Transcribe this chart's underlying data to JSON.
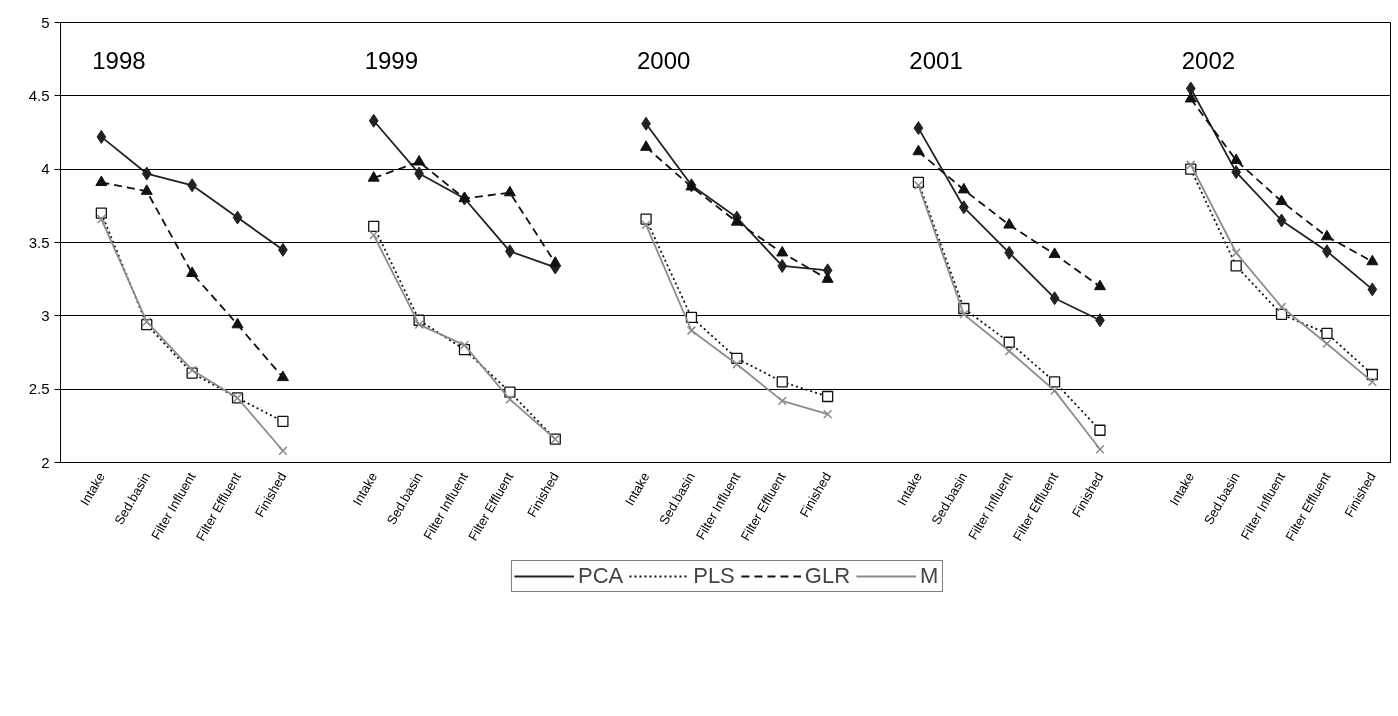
{
  "chart_data": {
    "type": "line",
    "categories": [
      "Intake",
      "Sed.basin",
      "Filter Influent",
      "Filter Effluent",
      "Finished",
      null,
      "Intake",
      "Sed.basin",
      "Filter Influent",
      "Filter Effluent",
      "Finished",
      null,
      "Intake",
      "Sed.basin",
      "Filter Influent",
      "Filter Effluent",
      "Finished",
      null,
      "Intake",
      "Sed.basin",
      "Filter Influent",
      "Filter Effluent",
      "Finished",
      null,
      "Intake",
      "Sed.basin",
      "Filter Influent",
      "Filter Effluent",
      "Finished"
    ],
    "series": [
      {
        "name": "PCA",
        "color": "#222222",
        "marker": "diamond",
        "line_style": "solid",
        "values": [
          4.22,
          3.97,
          3.89,
          3.67,
          3.45,
          null,
          4.33,
          3.97,
          3.8,
          3.44,
          3.33,
          null,
          4.31,
          3.89,
          3.67,
          3.34,
          3.31,
          null,
          4.28,
          3.74,
          3.43,
          3.12,
          2.97,
          null,
          4.55,
          3.98,
          3.65,
          3.44,
          3.18
        ]
      },
      {
        "name": "PLS",
        "color": "#111111",
        "marker": "square",
        "line_style": "dotted",
        "values": [
          3.7,
          2.94,
          2.61,
          2.44,
          2.28,
          null,
          3.61,
          2.97,
          2.77,
          2.48,
          2.16,
          null,
          3.66,
          2.99,
          2.71,
          2.55,
          2.45,
          null,
          3.91,
          3.05,
          2.82,
          2.55,
          2.22,
          null,
          4.0,
          3.34,
          3.01,
          2.88,
          2.6
        ]
      },
      {
        "name": "GLR",
        "color": "#111111",
        "marker": "triangle",
        "line_style": "dashed",
        "values": [
          3.91,
          3.85,
          3.29,
          2.94,
          2.58,
          null,
          3.94,
          4.05,
          3.8,
          3.84,
          3.36,
          null,
          4.15,
          3.88,
          3.64,
          3.43,
          3.25,
          null,
          4.12,
          3.86,
          3.62,
          3.42,
          3.2,
          null,
          4.48,
          4.06,
          3.78,
          3.54,
          3.37
        ]
      },
      {
        "name": "M",
        "color": "#8c8c8c",
        "marker": "cross",
        "line_style": "solid",
        "values": [
          3.66,
          2.96,
          2.63,
          2.44,
          2.08,
          null,
          3.55,
          2.94,
          2.8,
          2.43,
          2.16,
          null,
          3.62,
          2.9,
          2.67,
          2.42,
          2.33,
          null,
          3.89,
          3.01,
          2.76,
          2.49,
          2.09,
          null,
          4.03,
          3.43,
          3.06,
          2.81,
          2.55
        ]
      }
    ],
    "annotations": [
      "1998",
      "1999",
      "2000",
      "2001",
      "2002"
    ],
    "ylim": [
      2,
      5
    ],
    "yticks": [
      2,
      2.5,
      3,
      3.5,
      4,
      4.5,
      5
    ],
    "grid": "y",
    "legend": "bottom"
  }
}
